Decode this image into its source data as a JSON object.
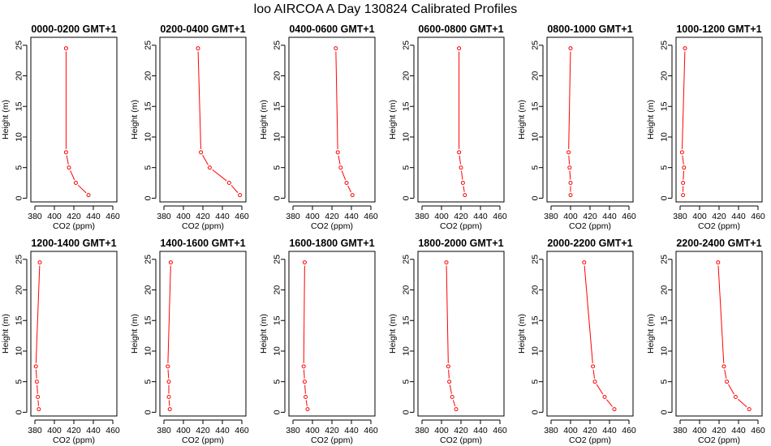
{
  "figure": {
    "title": "loo AIRCOA A  Day 130824  Calibrated Profiles"
  },
  "chart_data": [
    {
      "type": "line",
      "title": "0000-0200 GMT+1",
      "xlabel": "CO2 (ppm)",
      "ylabel": "Height (m)",
      "xlim": [
        380,
        460
      ],
      "ylim": [
        0,
        25
      ],
      "xticks": [
        380,
        400,
        420,
        440,
        460
      ],
      "yticks": [
        0,
        5,
        10,
        15,
        20,
        25
      ],
      "grid": false,
      "color": "#ff0000",
      "points": [
        {
          "x": 435,
          "y": 0.5
        },
        {
          "x": 422,
          "y": 2.5
        },
        {
          "x": 415,
          "y": 5
        },
        {
          "x": 412,
          "y": 7.5
        },
        {
          "x": 412,
          "y": 24.5
        }
      ]
    },
    {
      "type": "line",
      "title": "0200-0400 GMT+1",
      "xlabel": "CO2 (ppm)",
      "ylabel": "Height (m)",
      "xlim": [
        380,
        460
      ],
      "ylim": [
        0,
        25
      ],
      "xticks": [
        380,
        400,
        420,
        440,
        460
      ],
      "yticks": [
        0,
        5,
        10,
        15,
        20,
        25
      ],
      "grid": false,
      "color": "#ff0000",
      "points": [
        {
          "x": 458,
          "y": 0.5
        },
        {
          "x": 447,
          "y": 2.5
        },
        {
          "x": 427,
          "y": 5
        },
        {
          "x": 418,
          "y": 7.5
        },
        {
          "x": 415,
          "y": 24.5
        }
      ]
    },
    {
      "type": "line",
      "title": "0400-0600 GMT+1",
      "xlabel": "CO2 (ppm)",
      "ylabel": "Height (m)",
      "xlim": [
        380,
        460
      ],
      "ylim": [
        0,
        25
      ],
      "xticks": [
        380,
        400,
        420,
        440,
        460
      ],
      "yticks": [
        0,
        5,
        10,
        15,
        20,
        25
      ],
      "grid": false,
      "color": "#ff0000",
      "points": [
        {
          "x": 441,
          "y": 0.5
        },
        {
          "x": 435,
          "y": 2.5
        },
        {
          "x": 429,
          "y": 5
        },
        {
          "x": 426,
          "y": 7.5
        },
        {
          "x": 424,
          "y": 24.5
        }
      ]
    },
    {
      "type": "line",
      "title": "0600-0800 GMT+1",
      "xlabel": "CO2 (ppm)",
      "ylabel": "Height (m)",
      "xlim": [
        380,
        460
      ],
      "ylim": [
        0,
        25
      ],
      "xticks": [
        380,
        400,
        420,
        440,
        460
      ],
      "yticks": [
        0,
        5,
        10,
        15,
        20,
        25
      ],
      "grid": false,
      "color": "#ff0000",
      "points": [
        {
          "x": 424,
          "y": 0.5
        },
        {
          "x": 422,
          "y": 2.5
        },
        {
          "x": 420,
          "y": 5
        },
        {
          "x": 418,
          "y": 7.5
        },
        {
          "x": 418,
          "y": 24.5
        }
      ]
    },
    {
      "type": "line",
      "title": "0800-1000 GMT+1",
      "xlabel": "CO2 (ppm)",
      "ylabel": "Height (m)",
      "xlim": [
        380,
        460
      ],
      "ylim": [
        0,
        25
      ],
      "xticks": [
        380,
        400,
        420,
        440,
        460
      ],
      "yticks": [
        0,
        5,
        10,
        15,
        20,
        25
      ],
      "grid": false,
      "color": "#ff0000",
      "points": [
        {
          "x": 400,
          "y": 0.5
        },
        {
          "x": 400,
          "y": 2.5
        },
        {
          "x": 399,
          "y": 5
        },
        {
          "x": 398,
          "y": 7.5
        },
        {
          "x": 400,
          "y": 24.5
        }
      ]
    },
    {
      "type": "line",
      "title": "1000-1200 GMT+1",
      "xlabel": "CO2 (ppm)",
      "ylabel": "Height (m)",
      "xlim": [
        380,
        460
      ],
      "ylim": [
        0,
        25
      ],
      "xticks": [
        380,
        400,
        420,
        440,
        460
      ],
      "yticks": [
        0,
        5,
        10,
        15,
        20,
        25
      ],
      "grid": false,
      "color": "#ff0000",
      "points": [
        {
          "x": 383,
          "y": 0.5
        },
        {
          "x": 383,
          "y": 2.5
        },
        {
          "x": 384,
          "y": 5
        },
        {
          "x": 382,
          "y": 7.5
        },
        {
          "x": 385,
          "y": 24.5
        }
      ]
    },
    {
      "type": "line",
      "title": "1200-1400 GMT+1",
      "xlabel": "CO2 (ppm)",
      "ylabel": "Height (m)",
      "xlim": [
        380,
        460
      ],
      "ylim": [
        0,
        25
      ],
      "xticks": [
        380,
        400,
        420,
        440,
        460
      ],
      "yticks": [
        0,
        5,
        10,
        15,
        20,
        25
      ],
      "grid": false,
      "color": "#ff0000",
      "points": [
        {
          "x": 384,
          "y": 0.5
        },
        {
          "x": 383,
          "y": 2.5
        },
        {
          "x": 382,
          "y": 5
        },
        {
          "x": 381,
          "y": 7.5
        },
        {
          "x": 385,
          "y": 24.5
        }
      ]
    },
    {
      "type": "line",
      "title": "1400-1600 GMT+1",
      "xlabel": "CO2 (ppm)",
      "ylabel": "Height (m)",
      "xlim": [
        380,
        460
      ],
      "ylim": [
        0,
        25
      ],
      "xticks": [
        380,
        400,
        420,
        440,
        460
      ],
      "yticks": [
        0,
        5,
        10,
        15,
        20,
        25
      ],
      "grid": false,
      "color": "#ff0000",
      "points": [
        {
          "x": 386,
          "y": 0.5
        },
        {
          "x": 385,
          "y": 2.5
        },
        {
          "x": 385,
          "y": 5
        },
        {
          "x": 384,
          "y": 7.5
        },
        {
          "x": 387,
          "y": 24.5
        }
      ]
    },
    {
      "type": "line",
      "title": "1600-1800 GMT+1",
      "xlabel": "CO2 (ppm)",
      "ylabel": "Height (m)",
      "xlim": [
        380,
        460
      ],
      "ylim": [
        0,
        25
      ],
      "xticks": [
        380,
        400,
        420,
        440,
        460
      ],
      "yticks": [
        0,
        5,
        10,
        15,
        20,
        25
      ],
      "grid": false,
      "color": "#ff0000",
      "points": [
        {
          "x": 395,
          "y": 0.5
        },
        {
          "x": 393,
          "y": 2.5
        },
        {
          "x": 392,
          "y": 5
        },
        {
          "x": 391,
          "y": 7.5
        },
        {
          "x": 392,
          "y": 24.5
        }
      ]
    },
    {
      "type": "line",
      "title": "1800-2000 GMT+1",
      "xlabel": "CO2 (ppm)",
      "ylabel": "Height (m)",
      "xlim": [
        380,
        460
      ],
      "ylim": [
        0,
        25
      ],
      "xticks": [
        380,
        400,
        420,
        440,
        460
      ],
      "yticks": [
        0,
        5,
        10,
        15,
        20,
        25
      ],
      "grid": false,
      "color": "#ff0000",
      "points": [
        {
          "x": 415,
          "y": 0.5
        },
        {
          "x": 411,
          "y": 2.5
        },
        {
          "x": 408,
          "y": 5
        },
        {
          "x": 407,
          "y": 7.5
        },
        {
          "x": 405,
          "y": 24.5
        }
      ]
    },
    {
      "type": "line",
      "title": "2000-2200 GMT+1",
      "xlabel": "CO2 (ppm)",
      "ylabel": "Height (m)",
      "xlim": [
        380,
        460
      ],
      "ylim": [
        0,
        25
      ],
      "xticks": [
        380,
        400,
        420,
        440,
        460
      ],
      "yticks": [
        0,
        5,
        10,
        15,
        20,
        25
      ],
      "grid": false,
      "color": "#ff0000",
      "points": [
        {
          "x": 445,
          "y": 0.5
        },
        {
          "x": 435,
          "y": 2.5
        },
        {
          "x": 425,
          "y": 5
        },
        {
          "x": 423,
          "y": 7.5
        },
        {
          "x": 414,
          "y": 24.5
        }
      ]
    },
    {
      "type": "line",
      "title": "2200-2400 GMT+1",
      "xlabel": "CO2 (ppm)",
      "ylabel": "Height (m)",
      "xlim": [
        380,
        460
      ],
      "ylim": [
        0,
        25
      ],
      "xticks": [
        380,
        400,
        420,
        440,
        460
      ],
      "yticks": [
        0,
        5,
        10,
        15,
        20,
        25
      ],
      "grid": false,
      "color": "#ff0000",
      "points": [
        {
          "x": 451,
          "y": 0.5
        },
        {
          "x": 437,
          "y": 2.5
        },
        {
          "x": 428,
          "y": 5
        },
        {
          "x": 425,
          "y": 7.5
        },
        {
          "x": 419,
          "y": 24.5
        }
      ]
    }
  ]
}
